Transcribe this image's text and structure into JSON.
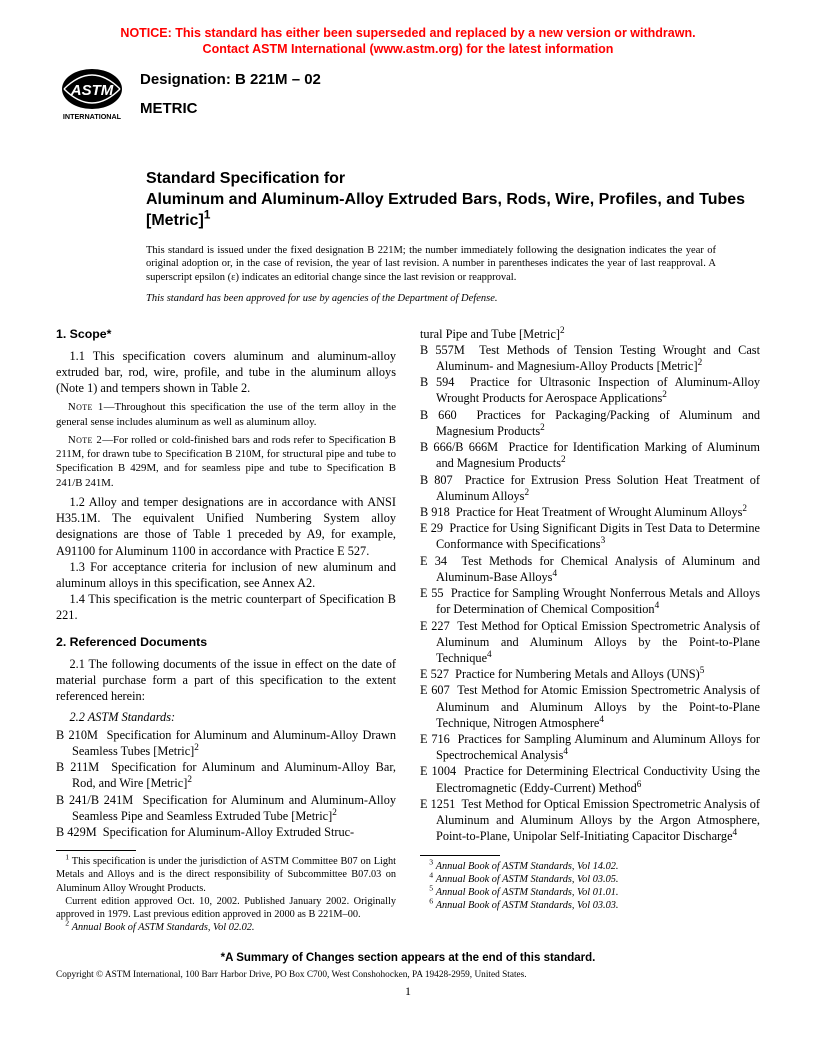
{
  "notice_line1": "NOTICE: This standard has either been superseded and replaced by a new version or withdrawn.",
  "notice_line2": "Contact ASTM International (www.astm.org) for the latest information",
  "notice_color": "#ff0000",
  "logo": {
    "text_top": "INTERNATIONAL",
    "fill": "#000000"
  },
  "designation": "Designation: B 221M – 02",
  "metric": "METRIC",
  "title_lead": "Standard Specification for",
  "title_main": "Aluminum and Aluminum-Alloy Extruded Bars, Rods, Wire, Profiles, and Tubes [Metric]",
  "title_sup": "1",
  "issue_note": "This standard is issued under the fixed designation B 221M; the number immediately following the designation indicates the year of original adoption or, in the case of revision, the year of last revision. A number in parentheses indicates the year of last reapproval. A superscript epsilon (ε) indicates an editorial change since the last revision or reapproval.",
  "dod_note": "This standard has been approved for use by agencies of the Department of Defense.",
  "h1": "1. Scope*",
  "p1_1": "1.1 This specification covers aluminum and aluminum-alloy extruded bar, rod, wire, profile, and tube in the aluminum alloys (Note 1) and tempers shown in Table 2.",
  "note1_label": "Note 1",
  "note1": "—Throughout this specification the use of the term alloy in the general sense includes aluminum as well as aluminum alloy.",
  "note2_label": "Note 2",
  "note2": "—For rolled or cold-finished bars and rods refer to Specification B 211M, for drawn tube to Specification B 210M, for structural pipe and tube to Specification B 429M, and for seamless pipe and tube to Specification B 241/B 241M.",
  "p1_2": "1.2 Alloy and temper designations are in accordance with ANSI H35.1M. The equivalent Unified Numbering System alloy designations are those of Table 1 preceded by A9, for example, A91100 for Aluminum 1100 in accordance with Practice E 527.",
  "p1_3": "1.3 For acceptance criteria for inclusion of new aluminum and aluminum alloys in this specification, see Annex A2.",
  "p1_4": "1.4 This specification is the metric counterpart of Specification B 221.",
  "h2": "2. Referenced Documents",
  "p2_1": "2.1 The following documents of the issue in effect on the date of material purchase form a part of this specification to the extent referenced herein:",
  "p2_2": "2.2 ASTM Standards:",
  "refs": [
    {
      "id": "B 210M",
      "txt": "Specification for Aluminum and Aluminum-Alloy Drawn Seamless Tubes [Metric]",
      "fn": 2
    },
    {
      "id": "B 211M",
      "txt": "Specification for Aluminum and Aluminum-Alloy Bar, Rod, and Wire [Metric]",
      "fn": 2
    },
    {
      "id": "B 241/B 241M",
      "txt": "Specification for Aluminum and Aluminum-Alloy Seamless Pipe and Seamless Extruded Tube [Metric]",
      "fn": 2
    },
    {
      "id": "B 429M",
      "txt": "Specification for Aluminum-Alloy Extruded Struc-",
      "fn": null
    }
  ],
  "refs2": [
    {
      "id": "",
      "txt": "tural Pipe and Tube [Metric]",
      "fn": 2
    },
    {
      "id": "B 557M",
      "txt": "Test Methods of Tension Testing Wrought and Cast Aluminum- and Magnesium-Alloy Products [Metric]",
      "fn": 2
    },
    {
      "id": "B 594",
      "txt": "Practice for Ultrasonic Inspection of Aluminum-Alloy Wrought Products for Aerospace Applications",
      "fn": 2
    },
    {
      "id": "B 660",
      "txt": "Practices for Packaging/Packing of Aluminum and Magnesium Products",
      "fn": 2
    },
    {
      "id": "B 666/B 666M",
      "txt": "Practice for Identification Marking of Aluminum and Magnesium Products",
      "fn": 2
    },
    {
      "id": "B 807",
      "txt": "Practice for Extrusion Press Solution Heat Treatment of Aluminum Alloys",
      "fn": 2
    },
    {
      "id": "B 918",
      "txt": "Practice for Heat Treatment of Wrought Aluminum Alloys",
      "fn": 2
    },
    {
      "id": "E 29",
      "txt": "Practice for Using Significant Digits in Test Data to Determine Conformance with Specifications",
      "fn": 3
    },
    {
      "id": "E 34",
      "txt": "Test Methods for Chemical Analysis of Aluminum and Aluminum-Base Alloys",
      "fn": 4
    },
    {
      "id": "E 55",
      "txt": "Practice for Sampling Wrought Nonferrous Metals and Alloys for Determination of Chemical Composition",
      "fn": 4
    },
    {
      "id": "E 227",
      "txt": "Test Method for Optical Emission Spectrometric Analysis of Aluminum and Aluminum Alloys by the Point-to-Plane Technique",
      "fn": 4
    },
    {
      "id": "E 527",
      "txt": "Practice for Numbering Metals and Alloys (UNS)",
      "fn": 5
    },
    {
      "id": "E 607",
      "txt": "Test Method for Atomic Emission Spectrometric Analysis of Aluminum and Aluminum Alloys by the Point-to-Plane Technique, Nitrogen Atmosphere",
      "fn": 4
    },
    {
      "id": "E 716",
      "txt": "Practices for Sampling Aluminum and Aluminum Alloys for Spectrochemical Analysis",
      "fn": 4
    },
    {
      "id": "E 1004",
      "txt": "Practice for Determining Electrical Conductivity Using the Electromagnetic (Eddy-Current) Method",
      "fn": 6
    },
    {
      "id": "E 1251",
      "txt": "Test Method for Optical Emission Spectrometric Analysis of Aluminum and Aluminum Alloys by the Argon Atmosphere, Point-to-Plane, Unipolar Self-Initiating Capacitor Discharge",
      "fn": 4
    }
  ],
  "fn1a": "This specification is under the jurisdiction of ASTM Committee B07 on Light Metals and Alloys and is the direct responsibility of Subcommittee B07.03 on Aluminum Alloy Wrought Products.",
  "fn1b": "Current edition approved Oct. 10, 2002. Published January 2002. Originally approved in 1979. Last previous edition approved in 2000 as B 221M–00.",
  "fn2": "Annual Book of ASTM Standards, Vol 02.02.",
  "fn3": "Annual Book of ASTM Standards, Vol 14.02.",
  "fn4": "Annual Book of ASTM Standards, Vol 03.05.",
  "fn5": "Annual Book of ASTM Standards, Vol 01.01.",
  "fn6": "Annual Book of ASTM Standards, Vol 03.03.",
  "summary": "*A Summary of Changes section appears at the end of this standard.",
  "copyright": "Copyright © ASTM International, 100 Barr Harbor Drive, PO Box C700, West Conshohocken, PA 19428-2959, United States.",
  "page_number": "1"
}
